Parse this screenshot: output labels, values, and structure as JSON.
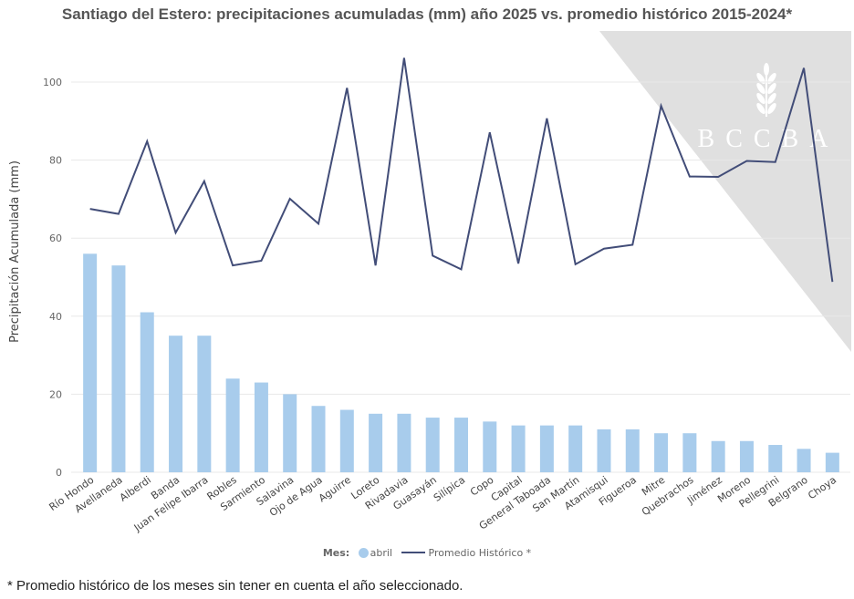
{
  "chart_data": {
    "type": "bar",
    "title": "Santiago del Estero: precipitaciones acumuladas (mm) año 2025 vs. promedio histórico 2015-2024*",
    "ylabel": "Precipitación Acumulada (mm)",
    "xlabel": "",
    "ylim": [
      0,
      110
    ],
    "yticks": [
      0,
      20,
      40,
      60,
      80,
      100
    ],
    "grid": true,
    "legend_placement": "bottom",
    "legend_title": "Mes:",
    "categories": [
      "Río Hondo",
      "Avellaneda",
      "Alberdi",
      "Banda",
      "Juan Felipe Ibarra",
      "Robles",
      "Sarmiento",
      "Salavina",
      "Ojo de Agua",
      "Aguirre",
      "Loreto",
      "Rivadavia",
      "Guasayán",
      "Silípica",
      "Copo",
      "Capital",
      "General Taboada",
      "San Martín",
      "Atamisqui",
      "Figueroa",
      "Mitre",
      "Quebrachos",
      "Jiménez",
      "Moreno",
      "Pellegrini",
      "Belgrano",
      "Choya"
    ],
    "series": [
      {
        "name": "abril",
        "type": "bar",
        "color": "#a8ccec",
        "values": [
          56,
          53,
          41,
          35,
          35,
          24,
          23,
          20,
          17,
          16,
          15,
          15,
          14,
          14,
          13,
          12,
          12,
          12,
          11,
          11,
          10,
          10,
          8,
          8,
          7,
          6,
          5
        ]
      },
      {
        "name": "Promedio Histórico *",
        "type": "line",
        "color": "#424d78",
        "values": [
          67.5,
          66.2,
          84.8,
          61.4,
          74.6,
          53.0,
          54.2,
          70.1,
          63.7,
          98.5,
          53.0,
          106.2,
          55.5,
          52.0,
          87.1,
          53.5,
          90.7,
          53.3,
          57.3,
          58.3,
          93.9,
          75.8,
          75.7,
          79.8,
          79.5,
          103.6,
          48.8
        ]
      }
    ]
  },
  "watermark": {
    "text": "BCCBA",
    "color": "#e0e0e0"
  },
  "footnote": "* Promedio histórico de los meses sin tener en cuenta el año seleccionado."
}
